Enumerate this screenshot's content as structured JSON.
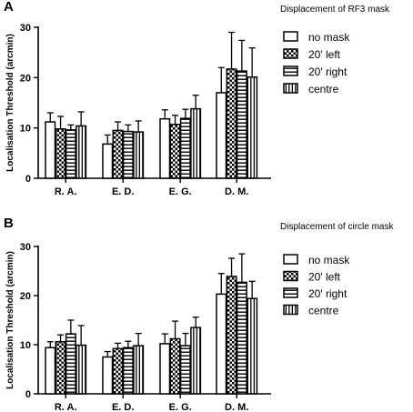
{
  "chart_data": [
    {
      "type": "bar",
      "panel_label": "A",
      "title": "Displacement of RF3 mask",
      "ylabel": "Localisation Threshold (arcmin)",
      "xlabel": "",
      "ylim": [
        0,
        30
      ],
      "yticks": [
        0,
        10,
        20,
        30
      ],
      "categories": [
        "R. A.",
        "E. D.",
        "E. G.",
        "D. M."
      ],
      "legend_position": "right",
      "series": [
        {
          "name": "no mask",
          "pattern": "plain",
          "values": [
            11.2,
            6.8,
            11.8,
            17.0
          ],
          "errors": [
            1.8,
            1.8,
            1.8,
            5.0
          ]
        },
        {
          "name": "20' left",
          "pattern": "checker",
          "values": [
            9.8,
            9.5,
            10.7,
            21.7
          ],
          "errors": [
            2.5,
            1.7,
            1.8,
            7.3
          ]
        },
        {
          "name": "20' right",
          "pattern": "hstripe",
          "values": [
            9.6,
            9.3,
            11.9,
            21.3
          ],
          "errors": [
            1.0,
            1.3,
            1.8,
            6.1
          ]
        },
        {
          "name": "centre",
          "pattern": "vstripe",
          "values": [
            10.4,
            9.2,
            13.8,
            20.1
          ],
          "errors": [
            2.8,
            2.2,
            2.7,
            5.8
          ]
        }
      ]
    },
    {
      "type": "bar",
      "panel_label": "B",
      "title": "Displacement of circle mask",
      "ylabel": "Localisation Threshold (arcmin)",
      "xlabel": "",
      "ylim": [
        0,
        30
      ],
      "yticks": [
        0,
        10,
        20,
        30
      ],
      "categories": [
        "R. A.",
        "E. D.",
        "E. G.",
        "D. M."
      ],
      "legend_position": "right",
      "series": [
        {
          "name": "no mask",
          "pattern": "plain",
          "values": [
            9.4,
            7.5,
            10.2,
            20.3
          ],
          "errors": [
            1.2,
            1.1,
            2.0,
            4.2
          ]
        },
        {
          "name": "20' left",
          "pattern": "checker",
          "values": [
            10.6,
            9.2,
            11.2,
            23.9
          ],
          "errors": [
            1.4,
            1.1,
            3.6,
            3.7
          ]
        },
        {
          "name": "20' right",
          "pattern": "hstripe",
          "values": [
            12.2,
            9.4,
            9.8,
            22.7
          ],
          "errors": [
            2.8,
            1.3,
            2.5,
            5.8
          ]
        },
        {
          "name": "centre",
          "pattern": "vstripe",
          "values": [
            9.9,
            9.8,
            13.5,
            19.4
          ],
          "errors": [
            4.0,
            2.5,
            2.1,
            3.5
          ]
        }
      ]
    }
  ]
}
